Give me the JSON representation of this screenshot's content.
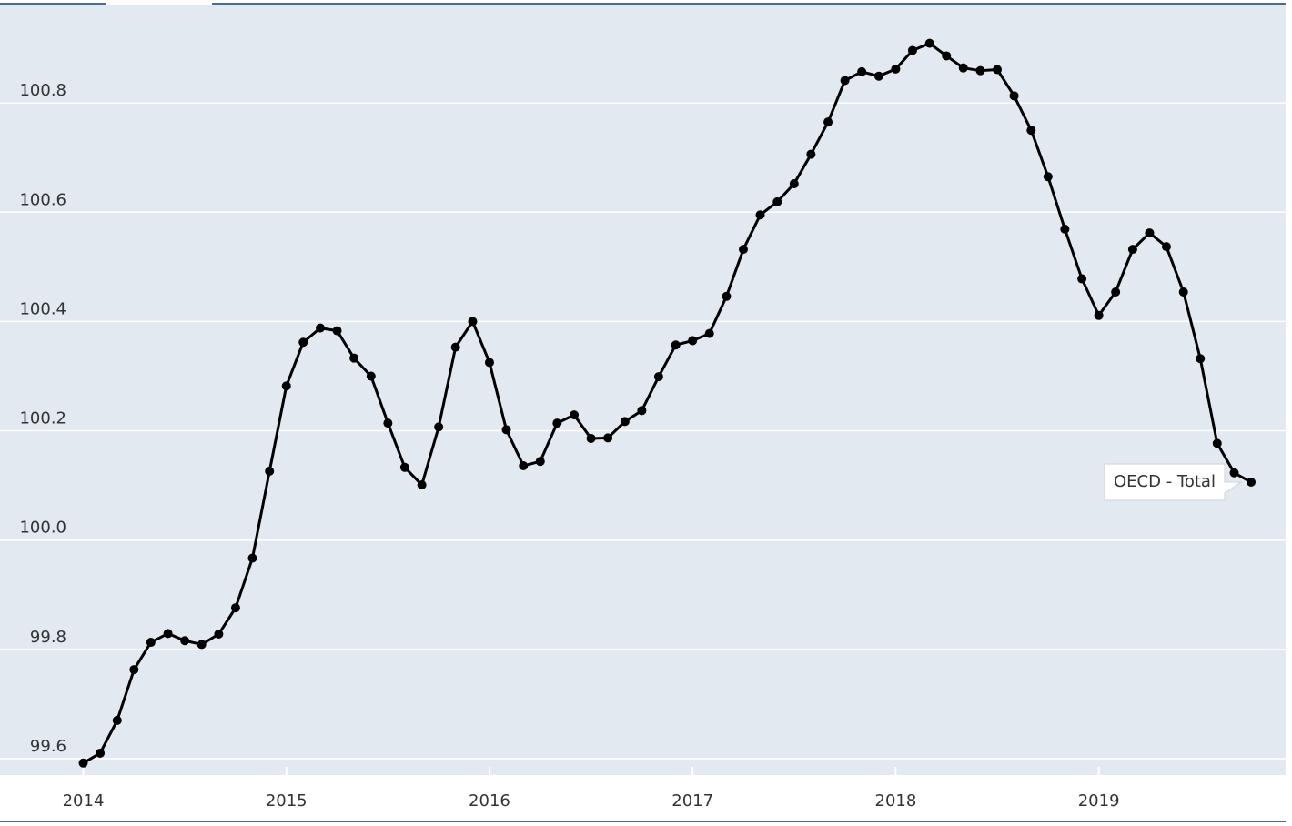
{
  "chart_data": {
    "type": "line",
    "x": [
      2014,
      2014.083,
      2014.167,
      2014.25,
      2014.333,
      2014.417,
      2014.5,
      2014.583,
      2014.667,
      2014.75,
      2014.833,
      2014.917,
      2015,
      2015.083,
      2015.167,
      2015.25,
      2015.333,
      2015.417,
      2015.5,
      2015.583,
      2015.667,
      2015.75,
      2015.833,
      2015.917,
      2016,
      2016.083,
      2016.167,
      2016.25,
      2016.333,
      2016.417,
      2016.5,
      2016.583,
      2016.667,
      2016.75,
      2016.833,
      2016.917,
      2017,
      2017.083,
      2017.167,
      2017.25,
      2017.333,
      2017.417,
      2017.5,
      2017.583,
      2017.667,
      2017.75,
      2017.833,
      2017.917,
      2018,
      2018.083,
      2018.167,
      2018.25,
      2018.333,
      2018.417,
      2018.5,
      2018.583,
      2018.667,
      2018.75,
      2018.833,
      2018.917,
      2019,
      2019.083,
      2019.167,
      2019.25,
      2019.333,
      2019.417,
      2019.5,
      2019.583,
      2019.667,
      2019.75
    ],
    "series": [
      {
        "name": "OECD - Total",
        "color": "#000000",
        "values": [
          99.592,
          99.61,
          99.67,
          99.763,
          99.813,
          99.829,
          99.816,
          99.809,
          99.828,
          99.876,
          99.967,
          100.126,
          100.282,
          100.362,
          100.388,
          100.383,
          100.333,
          100.3,
          100.214,
          100.133,
          100.101,
          100.207,
          100.353,
          100.4,
          100.325,
          100.202,
          100.136,
          100.144,
          100.214,
          100.229,
          100.186,
          100.187,
          100.217,
          100.237,
          100.299,
          100.357,
          100.365,
          100.378,
          100.446,
          100.532,
          100.595,
          100.619,
          100.652,
          100.706,
          100.765,
          100.841,
          100.857,
          100.849,
          100.862,
          100.896,
          100.909,
          100.886,
          100.864,
          100.859,
          100.861,
          100.813,
          100.75,
          100.665,
          100.569,
          100.478,
          100.411,
          100.454,
          100.532,
          100.562,
          100.537,
          100.454,
          100.332,
          100.177,
          100.123,
          100.106
        ]
      }
    ],
    "xlim": [
      2013.59,
      2019.92
    ],
    "xticks": [
      2014,
      2015,
      2016,
      2017,
      2018,
      2019
    ],
    "ylim": [
      99.57,
      100.98
    ],
    "yticks": [
      99.6,
      99.8,
      {
        "value": 100,
        "label": "100.0"
      },
      100.2,
      100.4,
      100.6,
      100.8
    ],
    "grid": true
  }
}
